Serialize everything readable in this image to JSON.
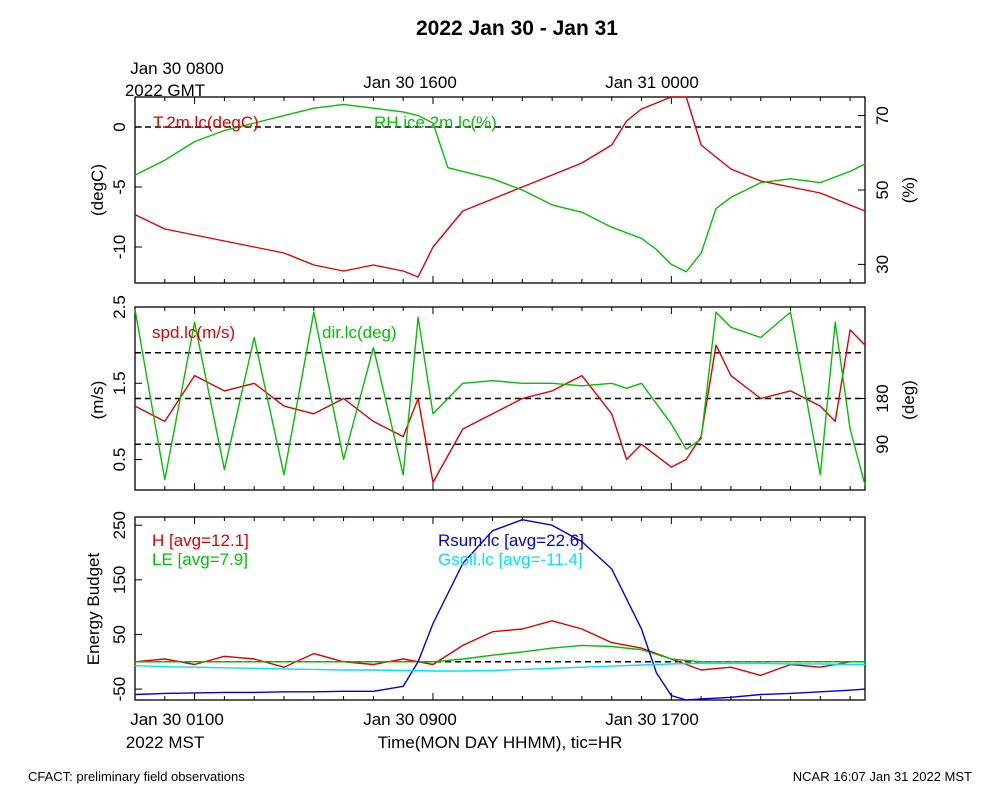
{
  "chart_data": [
    {
      "type": "line",
      "title": "2022 Jan 30 - Jan 31",
      "x_unit": "hours since Jan 30 0000 MST",
      "xlim": [
        -1,
        23.5
      ],
      "top_time_labels": [
        {
          "hour": 1,
          "line1": "Jan 30 0800",
          "line2": "2022 GMT"
        },
        {
          "hour": 9,
          "line1": "Jan 30 1600"
        },
        {
          "hour": 17,
          "line1": "Jan 31 0000"
        }
      ],
      "ylabel": "(degC)",
      "y2label": "(%)",
      "ylim": [
        -13,
        2.5
      ],
      "y2lim": [
        25,
        75
      ],
      "yticks": [
        {
          "v": 0,
          "label": "0"
        },
        {
          "v": -5,
          "label": "-5"
        },
        {
          "v": -10,
          "label": "-10"
        }
      ],
      "y2ticks": [
        {
          "v": 70,
          "label": "70"
        },
        {
          "v": 50,
          "label": "50"
        },
        {
          "v": 30,
          "label": "30"
        }
      ],
      "reference_line": 0,
      "series": [
        {
          "name": "T.2m.lc(degC)",
          "color": "#e00000",
          "axis": "left",
          "x": [
            -1,
            0,
            1,
            2,
            3,
            4,
            5,
            6,
            7,
            8,
            8.5,
            9,
            10,
            11,
            12,
            13,
            14,
            15,
            15.5,
            16,
            17,
            17.5,
            18,
            19,
            20,
            21,
            22,
            23,
            23.5
          ],
          "values": [
            -7.3,
            -8.5,
            -9,
            -9.5,
            -10,
            -10.5,
            -11.5,
            -12,
            -11.5,
            -12,
            -12.5,
            -10,
            -7,
            -6,
            -5,
            -4,
            -3,
            -1.5,
            0.5,
            1.5,
            2.5,
            2.5,
            -1.5,
            -3.5,
            -4.5,
            -5,
            -5.5,
            -6.5,
            -7
          ]
        },
        {
          "name": "RH.ice.2m.lc(%)",
          "color": "#00c000",
          "axis": "right",
          "x": [
            -1,
            0,
            1,
            2,
            3,
            4,
            5,
            6,
            7,
            8,
            8.5,
            9,
            9.5,
            10,
            11,
            12,
            13,
            14,
            15,
            16,
            16.5,
            17,
            17.5,
            18,
            18.5,
            19,
            20,
            21,
            22,
            23,
            23.5
          ],
          "values": [
            54,
            58,
            63,
            66,
            68,
            70,
            72,
            73,
            72,
            71,
            70,
            68,
            56,
            55,
            53,
            50,
            46,
            44,
            40,
            37,
            34,
            30,
            28,
            33,
            45,
            48,
            52,
            53,
            52,
            55,
            57
          ]
        }
      ]
    },
    {
      "type": "line",
      "ylabel": "(m/s)",
      "y2label": "(deg)",
      "ylim": [
        0.1,
        2.5
      ],
      "y2lim": [
        0,
        360
      ],
      "yticks": [
        {
          "v": 2.5,
          "label": "2.5"
        },
        {
          "v": 1.5,
          "label": "1.5"
        },
        {
          "v": 0.5,
          "label": "0.5"
        }
      ],
      "y2ticks": [
        {
          "v": 180,
          "label": "180"
        },
        {
          "v": 90,
          "label": "90"
        }
      ],
      "reference_lines_deg": [
        90,
        180,
        270
      ],
      "series": [
        {
          "name": "spd.lc(m/s)",
          "color": "#e00000",
          "axis": "left",
          "x": [
            -1,
            0,
            1,
            2,
            3,
            4,
            5,
            6,
            7,
            8,
            8.5,
            9,
            10,
            11,
            12,
            13,
            14,
            15,
            15.5,
            16,
            17,
            17.5,
            18,
            18.5,
            19,
            20,
            21,
            22,
            22.5,
            23,
            23.5
          ],
          "values": [
            1.2,
            1.0,
            1.6,
            1.4,
            1.5,
            1.2,
            1.1,
            1.3,
            1.0,
            0.8,
            1.3,
            0.2,
            0.9,
            1.1,
            1.3,
            1.4,
            1.6,
            1.1,
            0.5,
            0.7,
            0.4,
            0.5,
            0.8,
            2.0,
            1.6,
            1.3,
            1.4,
            1.2,
            1.0,
            2.2,
            2.0
          ]
        },
        {
          "name": "dir.lc(deg)",
          "color": "#00c000",
          "axis": "right",
          "x": [
            -1,
            0,
            1,
            2,
            3,
            4,
            5,
            6,
            7,
            8,
            8.5,
            9,
            10,
            11,
            12,
            13,
            14,
            15,
            15.5,
            16,
            17,
            17.5,
            18,
            18.5,
            19,
            20,
            21,
            22,
            22.5,
            23,
            23.5
          ],
          "values": [
            355,
            20,
            330,
            40,
            300,
            30,
            350,
            60,
            280,
            30,
            340,
            150,
            210,
            215,
            210,
            210,
            205,
            210,
            200,
            210,
            130,
            80,
            100,
            350,
            320,
            300,
            350,
            30,
            330,
            120,
            10
          ]
        }
      ]
    },
    {
      "type": "line",
      "ylabel": "Energy Budget",
      "xlabel": "Time(MON DAY HHMM), tic=HR",
      "ylim": [
        -70,
        265
      ],
      "yticks": [
        {
          "v": 250,
          "label": "250"
        },
        {
          "v": 150,
          "label": "150"
        },
        {
          "v": 50,
          "label": "50"
        },
        {
          "v": -50,
          "label": "-50"
        }
      ],
      "reference_line": 0,
      "bottom_time_labels": [
        {
          "hour": 1,
          "line1": "Jan 30 0100",
          "line2": "2022 MST"
        },
        {
          "hour": 9,
          "line1": "Jan 30 0900"
        },
        {
          "hour": 17,
          "line1": "Jan 30 1700"
        }
      ],
      "series": [
        {
          "name": "H [avg=12.1]",
          "color": "#e00000",
          "x": [
            -1,
            0,
            1,
            2,
            3,
            4,
            5,
            6,
            7,
            8,
            9,
            10,
            11,
            12,
            13,
            14,
            15,
            16,
            17,
            18,
            19,
            20,
            21,
            22,
            23,
            23.5
          ],
          "values": [
            0,
            5,
            -5,
            10,
            5,
            -10,
            15,
            0,
            -5,
            5,
            -5,
            30,
            55,
            60,
            75,
            60,
            35,
            25,
            5,
            -15,
            -10,
            -25,
            -5,
            -10,
            0,
            0
          ]
        },
        {
          "name": "LE [avg=7.9]",
          "color": "#00c000",
          "x": [
            -1,
            0,
            1,
            2,
            3,
            4,
            5,
            6,
            7,
            8,
            9,
            10,
            11,
            12,
            13,
            14,
            15,
            16,
            17,
            18,
            19,
            20,
            21,
            22,
            23,
            23.5
          ],
          "values": [
            0,
            0,
            0,
            0,
            0,
            0,
            0,
            0,
            0,
            0,
            0,
            5,
            12,
            18,
            25,
            30,
            28,
            22,
            5,
            0,
            0,
            0,
            0,
            0,
            0,
            0
          ]
        },
        {
          "name": "Rsum.lc [avg=22.6]",
          "color": "#0000e0",
          "x": [
            -1,
            0,
            1,
            2,
            3,
            4,
            5,
            6,
            7,
            8,
            8.5,
            9,
            10,
            11,
            12,
            13,
            14,
            15,
            16,
            16.5,
            17,
            17.5,
            18,
            19,
            20,
            21,
            22,
            23,
            23.5
          ],
          "values": [
            -60,
            -58,
            -57,
            -56,
            -56,
            -55,
            -55,
            -54,
            -54,
            -45,
            0,
            70,
            180,
            240,
            260,
            250,
            220,
            170,
            60,
            -20,
            -62,
            -70,
            -68,
            -65,
            -60,
            -58,
            -55,
            -52,
            -50
          ]
        },
        {
          "name": "Gsoil.lc [avg=-11.4]",
          "color": "#00e0ff",
          "x": [
            -1,
            0,
            1,
            2,
            3,
            4,
            5,
            6,
            7,
            8,
            9,
            10,
            11,
            12,
            13,
            14,
            15,
            16,
            17,
            18,
            19,
            20,
            21,
            22,
            23,
            23.5
          ],
          "values": [
            -7,
            -9,
            -10,
            -11,
            -12,
            -13,
            -14,
            -15,
            -15,
            -16,
            -17,
            -17,
            -16,
            -14,
            -12,
            -10,
            -8,
            -6,
            -4,
            -3,
            -3,
            -3,
            -4,
            -4,
            -5,
            -5
          ]
        }
      ]
    }
  ],
  "footer": {
    "left": "CFACT: preliminary field observations",
    "right": "NCAR 16:07 Jan 31 2022 MST"
  }
}
